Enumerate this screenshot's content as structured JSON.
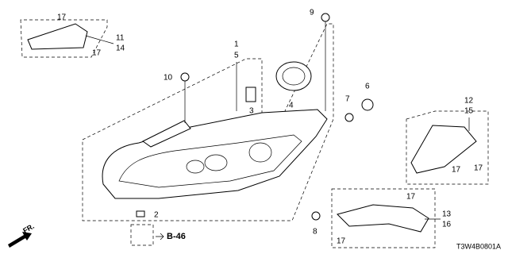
{
  "callouts": [
    {
      "label": "17"
    },
    {
      "label": "11"
    },
    {
      "label": "14"
    },
    {
      "label": "17"
    },
    {
      "label": "9"
    },
    {
      "label": "1"
    },
    {
      "label": "5"
    },
    {
      "label": "10"
    },
    {
      "label": "3"
    },
    {
      "label": "4"
    },
    {
      "label": "6"
    },
    {
      "label": "7"
    },
    {
      "label": "2"
    },
    {
      "label": "8"
    },
    {
      "label": "12"
    },
    {
      "label": "15"
    },
    {
      "label": "17"
    },
    {
      "label": "17"
    },
    {
      "label": "17"
    },
    {
      "label": "13"
    },
    {
      "label": "16"
    },
    {
      "label": "17"
    }
  ],
  "reference": "B-46",
  "direction": "FR.",
  "diagram_code": "T3W4B0801A"
}
